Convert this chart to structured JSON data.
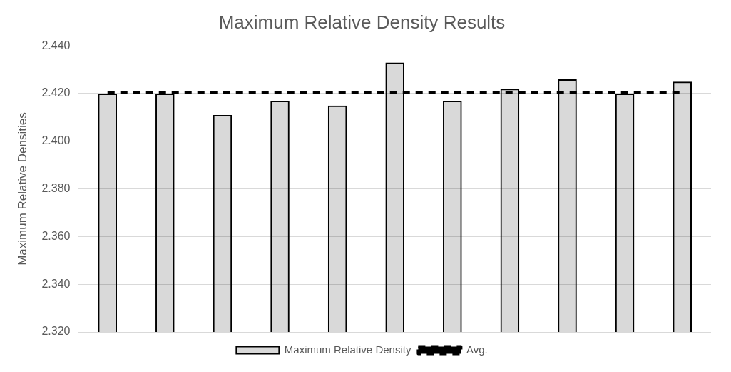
{
  "chart_data": {
    "type": "bar",
    "title": "Maximum Relative Density Results",
    "ylabel": "Maximum Relative Densities",
    "categories": [
      null,
      null,
      null,
      null,
      null,
      null,
      null,
      null,
      null,
      null,
      null
    ],
    "series": [
      {
        "name": "Maximum Relative Density",
        "color": "#000000",
        "values": [
          2.42,
          2.42,
          2.411,
          2.417,
          2.415,
          2.433,
          2.417,
          2.422,
          2.426,
          2.42,
          2.425
        ]
      },
      {
        "name": "Avg.",
        "type": "line",
        "color": "#000000",
        "line_style": "dashed",
        "values": [
          2.4205,
          2.4205,
          2.4205,
          2.4205,
          2.4205,
          2.4205,
          2.4205,
          2.4205,
          2.4205,
          2.4205,
          2.4205
        ]
      }
    ],
    "ylim": [
      2.32,
      2.44
    ],
    "yticks": [
      {
        "value": 2.32,
        "label": "2.320"
      },
      {
        "value": 2.34,
        "label": "2.340"
      },
      {
        "value": 2.36,
        "label": "2.360"
      },
      {
        "value": 2.38,
        "label": "2.380"
      },
      {
        "value": 2.4,
        "label": "2.400"
      },
      {
        "value": 2.42,
        "label": "2.420"
      },
      {
        "value": 2.44,
        "label": "2.440"
      }
    ],
    "grid": "y",
    "legend": "bottom",
    "marker": "none"
  }
}
